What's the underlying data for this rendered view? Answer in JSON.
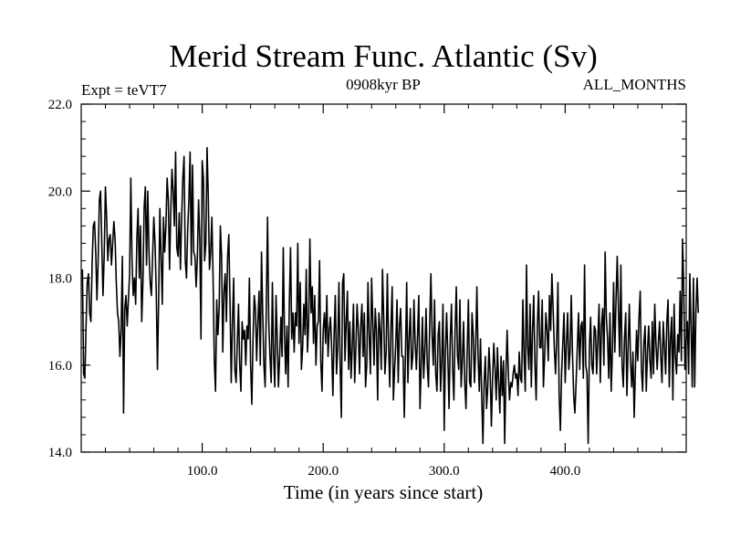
{
  "chart_data": {
    "type": "line",
    "title": "Merid Stream Func. Atlantic (Sv)",
    "left_label": "Expt = teVT7",
    "center_label": "0908kyr BP",
    "right_label": "ALL_MONTHS",
    "xlabel": "Time (in years since start)",
    "ylabel": "",
    "xlim": [
      0,
      500
    ],
    "ylim": [
      14.0,
      22.0
    ],
    "x_ticks": [
      100,
      200,
      300,
      400
    ],
    "x_tick_labels": [
      "100.0",
      "200.0",
      "300.0",
      "400.0"
    ],
    "y_ticks": [
      14,
      16,
      18,
      20,
      22
    ],
    "y_tick_labels": [
      "14.0",
      "16.0",
      "18.0",
      "20.0",
      "22.0"
    ],
    "grid": false,
    "series": [
      {
        "name": "Merid Stream Func. Atlantic",
        "x_start": 1,
        "x_step": 1,
        "values": [
          18.2,
          15.8,
          15.7,
          16.9,
          17.9,
          18.1,
          17.2,
          17.0,
          18.3,
          19.2,
          19.3,
          18.6,
          17.5,
          18.4,
          19.8,
          20.0,
          18.8,
          17.6,
          18.5,
          20.1,
          19.4,
          18.4,
          18.9,
          19.0,
          18.3,
          18.8,
          19.3,
          18.9,
          17.9,
          17.2,
          17.0,
          16.2,
          16.8,
          18.5,
          14.9,
          17.3,
          17.6,
          16.9,
          17.5,
          18.1,
          20.3,
          18.4,
          17.6,
          18.0,
          17.4,
          18.9,
          19.6,
          18.0,
          19.2,
          17.0,
          17.9,
          19.6,
          20.1,
          18.3,
          20.0,
          18.6,
          17.9,
          17.6,
          18.5,
          19.4,
          18.8,
          17.7,
          15.9,
          17.5,
          19.6,
          18.5,
          17.4,
          19.4,
          18.6,
          19.2,
          20.3,
          19.8,
          18.2,
          19.5,
          20.5,
          20.0,
          19.2,
          20.9,
          18.7,
          18.5,
          19.5,
          18.2,
          19.4,
          20.3,
          20.8,
          18.4,
          18.0,
          19.1,
          19.8,
          20.9,
          18.3,
          20.6,
          18.6,
          18.5,
          17.8,
          18.5,
          19.8,
          18.9,
          16.6,
          20.7,
          20.3,
          18.4,
          18.8,
          21.0,
          19.9,
          18.2,
          18.6,
          19.4,
          18.0,
          16.1,
          15.4,
          17.5,
          16.7,
          17.3,
          19.2,
          18.5,
          16.3,
          17.7,
          18.1,
          17.0,
          18.5,
          19.0,
          17.4,
          15.6,
          17.0,
          18.0,
          15.9,
          15.6,
          16.5,
          17.4,
          16.0,
          15.4,
          17.0,
          16.6,
          16.8,
          16.0,
          16.9,
          16.6,
          18.0,
          16.0,
          15.1,
          16.6,
          17.6,
          17.3,
          16.1,
          17.0,
          17.7,
          16.0,
          18.6,
          17.2,
          16.0,
          15.5,
          17.4,
          19.4,
          17.0,
          16.2,
          15.6,
          17.9,
          16.2,
          15.5,
          17.6,
          16.6,
          15.5,
          16.2,
          17.1,
          16.2,
          18.7,
          16.7,
          15.8,
          16.9,
          15.5,
          17.4,
          18.7,
          16.6,
          17.2,
          16.3,
          17.2,
          16.9,
          18.8,
          16.5,
          17.9,
          15.9,
          16.4,
          17.4,
          16.7,
          18.2,
          16.3,
          17.0,
          18.9,
          17.2,
          17.8,
          16.5,
          17.6,
          16.0,
          16.9,
          17.0,
          18.4,
          16.1,
          15.4,
          16.8,
          17.2,
          16.5,
          17.6,
          16.2,
          16.8,
          17.1,
          16.4,
          15.3,
          16.7,
          17.6,
          15.8,
          16.4,
          17.9,
          16.0,
          14.8,
          17.9,
          18.1,
          16.1,
          17.0,
          17.7,
          15.9,
          17.0,
          15.7,
          16.4,
          17.4,
          15.6,
          16.4,
          17.4,
          16.8,
          15.8,
          16.9,
          17.4,
          16.2,
          17.2,
          15.5,
          16.0,
          17.9,
          16.7,
          15.8,
          18.0,
          17.0,
          16.0,
          17.3,
          16.8,
          15.2,
          17.2,
          16.8,
          15.9,
          18.2,
          17.1,
          15.8,
          16.3,
          18.1,
          16.5,
          15.5,
          16.9,
          17.8,
          15.2,
          15.9,
          16.5,
          17.5,
          15.6,
          16.9,
          17.3,
          16.2,
          16.2,
          14.8,
          16.3,
          17.9,
          15.6,
          16.6,
          17.3,
          15.9,
          16.2,
          17.5,
          16.5,
          15.9,
          16.7,
          17.6,
          15.0,
          16.0,
          17.1,
          15.7,
          16.3,
          17.3,
          16.0,
          15.5,
          16.9,
          18.1,
          16.7,
          16.0,
          17.5,
          15.8,
          15.4,
          16.7,
          17.0,
          15.4,
          16.1,
          17.4,
          14.5,
          16.3,
          17.2,
          16.2,
          15.0,
          16.6,
          17.4,
          15.9,
          15.2,
          16.8,
          17.8,
          16.2,
          15.9,
          17.5,
          15.5,
          16.1,
          17.0,
          15.6,
          15.0,
          16.3,
          17.5,
          15.6,
          15.5,
          17.2,
          16.7,
          15.6,
          16.4,
          17.8,
          16.2,
          15.4,
          16.6,
          15.3,
          14.2,
          15.6,
          16.2,
          15.0,
          15.5,
          16.4,
          15.8,
          14.6,
          15.7,
          16.5,
          15.9,
          15.2,
          16.4,
          15.6,
          14.9,
          16.2,
          15.3,
          16.1,
          14.2,
          15.8,
          16.8,
          15.8,
          15.2,
          15.6,
          15.5,
          15.8,
          16.0,
          15.7,
          15.8,
          15.3,
          16.3,
          15.7,
          15.6,
          17.5,
          16.2,
          15.4,
          18.3,
          16.4,
          15.9,
          17.4,
          15.5,
          16.8,
          17.6,
          16.0,
          15.2,
          16.9,
          17.7,
          16.4,
          16.4,
          17.5,
          15.5,
          16.2,
          17.2,
          16.8,
          16.1,
          17.6,
          16.8,
          18.1,
          17.3,
          16.4,
          15.8,
          16.6,
          17.9,
          15.3,
          14.5,
          15.8,
          16.5,
          17.2,
          15.6,
          16.5,
          17.2,
          15.9,
          16.3,
          17.6,
          16.3,
          15.3,
          14.9,
          15.6,
          16.4,
          17.2,
          15.9,
          16.9,
          17.0,
          15.7,
          18.3,
          16.0,
          15.8,
          14.2,
          16.4,
          17.1,
          16.0,
          15.8,
          16.9,
          16.8,
          15.8,
          16.6,
          17.4,
          15.6,
          16.9,
          17.3,
          16.0,
          18.6,
          17.1,
          16.6,
          15.7,
          17.2,
          15.4,
          16.3,
          17.9,
          16.3,
          17.5,
          18.5,
          17.3,
          16.2,
          18.3,
          16.0,
          15.5,
          16.6,
          17.2,
          15.3,
          16.4,
          17.4,
          16.1,
          15.5,
          16.3,
          14.8,
          15.9,
          16.8,
          16.1,
          17.1,
          17.7,
          15.9,
          15.4,
          16.5,
          16.9,
          15.4,
          16.3,
          16.9,
          16.1,
          15.7,
          17.0,
          15.8,
          17.4,
          16.5,
          15.9,
          16.5,
          17.0,
          16.2,
          15.6,
          17.0,
          16.4,
          15.8,
          17.0,
          17.5,
          15.5,
          16.6,
          17.1,
          15.2,
          17.4,
          16.2,
          15.8,
          16.7,
          16.3,
          17.7,
          16.1,
          18.9,
          17.7,
          15.9,
          16.6,
          17.0,
          15.8,
          18.1,
          16.9,
          15.5,
          18.0,
          15.5,
          17.2,
          18.0,
          17.2
        ]
      }
    ]
  }
}
